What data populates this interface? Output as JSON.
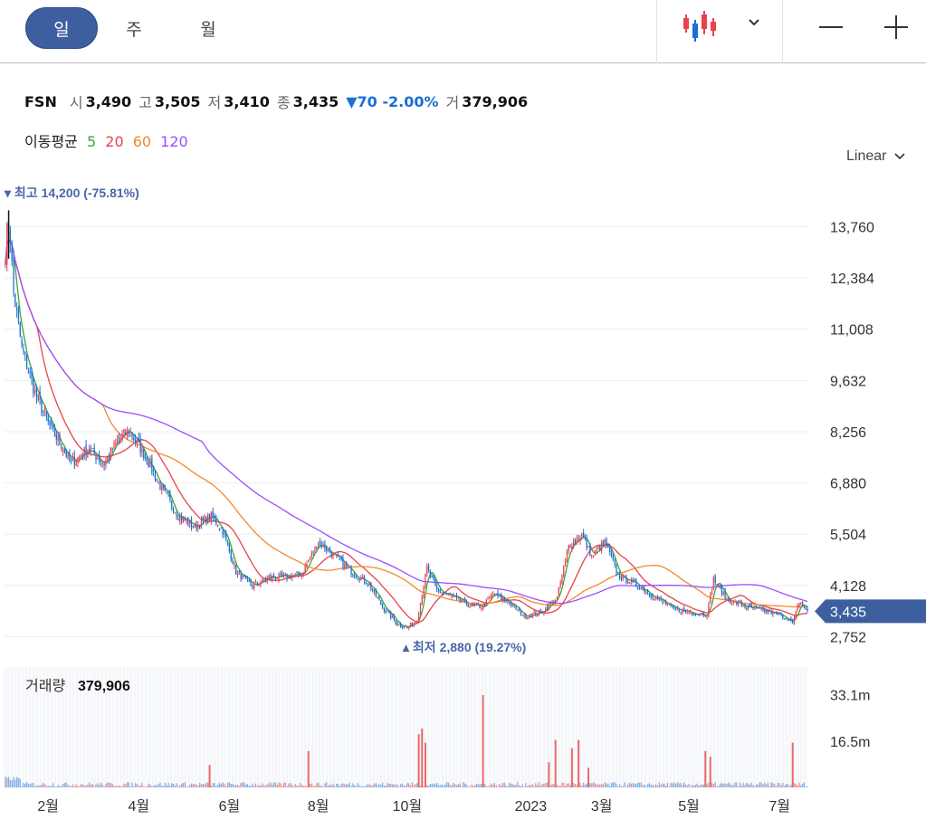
{
  "toolbar": {
    "tabs": [
      {
        "label": "일",
        "active": true
      },
      {
        "label": "주",
        "active": false
      },
      {
        "label": "월",
        "active": false
      }
    ],
    "chart_type_icon": "candlestick-icon",
    "dropdown_icon": "chevron-down-icon",
    "zoom_out_icon": "minus-icon",
    "zoom_in_icon": "plus-icon"
  },
  "quote": {
    "symbol": "FSN",
    "open_label": "시",
    "open": "3,490",
    "high_label": "고",
    "high": "3,505",
    "low_label": "저",
    "low": "3,410",
    "close_label": "종",
    "close": "3,435",
    "change": "▼70 -2.00%",
    "volume_label": "거",
    "volume": "379,906"
  },
  "moving_averages": {
    "label": "이동평균",
    "periods": [
      {
        "label": "5",
        "color": "#3aa53a"
      },
      {
        "label": "20",
        "color": "#e8424d"
      },
      {
        "label": "60",
        "color": "#f08a2c"
      },
      {
        "label": "120",
        "color": "#9b4dff"
      }
    ]
  },
  "scale": {
    "label": "Linear"
  },
  "chart_data": [
    {
      "type": "candlestick",
      "y_ticks": [
        "13,760",
        "12,384",
        "11,008",
        "9,632",
        "8,256",
        "6,880",
        "5,504",
        "4,128",
        "2,752"
      ],
      "y_tick_values": [
        13760,
        12384,
        11008,
        9632,
        8256,
        6880,
        5504,
        4128,
        2752
      ],
      "ylim": [
        2350,
        14500
      ],
      "x_ticks": [
        "2월",
        "4월",
        "6월",
        "8월",
        "10월",
        "2023",
        "3월",
        "5월",
        "7월"
      ],
      "current_price": "3,435",
      "high_marker": "최고 14,200 (-75.81%)",
      "low_marker": "최저 2,880 (19.27%)",
      "price_path": [
        {
          "day": 0,
          "price": 13000
        },
        {
          "day": 2,
          "price": 14200
        },
        {
          "day": 5,
          "price": 12000
        },
        {
          "day": 10,
          "price": 10500
        },
        {
          "day": 18,
          "price": 9300
        },
        {
          "day": 28,
          "price": 8300
        },
        {
          "day": 34,
          "price": 7900
        },
        {
          "day": 40,
          "price": 7400
        },
        {
          "day": 50,
          "price": 7800
        },
        {
          "day": 60,
          "price": 7400
        },
        {
          "day": 68,
          "price": 8000
        },
        {
          "day": 75,
          "price": 8300
        },
        {
          "day": 85,
          "price": 7600
        },
        {
          "day": 95,
          "price": 6700
        },
        {
          "day": 105,
          "price": 6000
        },
        {
          "day": 115,
          "price": 5700
        },
        {
          "day": 125,
          "price": 6000
        },
        {
          "day": 132,
          "price": 5600
        },
        {
          "day": 140,
          "price": 4500
        },
        {
          "day": 150,
          "price": 4100
        },
        {
          "day": 160,
          "price": 4350
        },
        {
          "day": 170,
          "price": 4350
        },
        {
          "day": 180,
          "price": 4450
        },
        {
          "day": 190,
          "price": 5300
        },
        {
          "day": 200,
          "price": 4900
        },
        {
          "day": 210,
          "price": 4500
        },
        {
          "day": 220,
          "price": 4200
        },
        {
          "day": 230,
          "price": 3500
        },
        {
          "day": 238,
          "price": 3100
        },
        {
          "day": 244,
          "price": 3000
        },
        {
          "day": 250,
          "price": 3200
        },
        {
          "day": 256,
          "price": 4600
        },
        {
          "day": 262,
          "price": 4000
        },
        {
          "day": 272,
          "price": 3800
        },
        {
          "day": 282,
          "price": 3600
        },
        {
          "day": 290,
          "price": 3550
        },
        {
          "day": 296,
          "price": 3900
        },
        {
          "day": 305,
          "price": 3700
        },
        {
          "day": 315,
          "price": 3300
        },
        {
          "day": 325,
          "price": 3400
        },
        {
          "day": 335,
          "price": 3800
        },
        {
          "day": 342,
          "price": 5200
        },
        {
          "day": 350,
          "price": 5500
        },
        {
          "day": 356,
          "price": 4900
        },
        {
          "day": 364,
          "price": 5300
        },
        {
          "day": 372,
          "price": 4400
        },
        {
          "day": 385,
          "price": 4100
        },
        {
          "day": 395,
          "price": 3800
        },
        {
          "day": 405,
          "price": 3500
        },
        {
          "day": 418,
          "price": 3400
        },
        {
          "day": 426,
          "price": 3350
        },
        {
          "day": 430,
          "price": 4300
        },
        {
          "day": 438,
          "price": 3750
        },
        {
          "day": 450,
          "price": 3550
        },
        {
          "day": 465,
          "price": 3400
        },
        {
          "day": 475,
          "price": 3250
        },
        {
          "day": 478,
          "price": 3100
        },
        {
          "day": 482,
          "price": 3700
        },
        {
          "day": 487,
          "price": 3435
        }
      ]
    },
    {
      "type": "bar",
      "title": "거래량",
      "last_value": "379,906",
      "y_ticks": [
        "33.1m",
        "16.5m"
      ],
      "y_tick_values": [
        33.1,
        16.5
      ],
      "ylim": [
        0,
        43
      ],
      "spikes": [
        {
          "day": 124,
          "value": 8
        },
        {
          "day": 184,
          "value": 13
        },
        {
          "day": 251,
          "value": 19
        },
        {
          "day": 253,
          "value": 21
        },
        {
          "day": 255,
          "value": 16
        },
        {
          "day": 290,
          "value": 33
        },
        {
          "day": 330,
          "value": 9
        },
        {
          "day": 334,
          "value": 17
        },
        {
          "day": 344,
          "value": 14
        },
        {
          "day": 348,
          "value": 17
        },
        {
          "day": 354,
          "value": 7
        },
        {
          "day": 425,
          "value": 13
        },
        {
          "day": 428,
          "value": 11
        },
        {
          "day": 478,
          "value": 16
        }
      ]
    }
  ]
}
